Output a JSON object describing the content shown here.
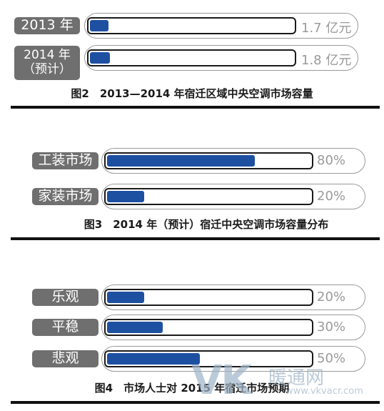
{
  "colors": {
    "fill": "#1e50a2",
    "label_bg": "#6f6f6f",
    "value_text": "#9a9a9a"
  },
  "charts": [
    {
      "caption": "图2　2013—2014 年宿迁区域中央空调市场容量",
      "rows": [
        {
          "label": "2013 年",
          "value_text": "1.7 亿元"
        },
        {
          "label": "2014 年\n（预计）",
          "value_text": "1.8 亿元"
        }
      ]
    },
    {
      "caption": "图3　2014 年（预计）宿迁中央空调市场容量分布",
      "rows": [
        {
          "label": "工装市场",
          "value_text": "80%"
        },
        {
          "label": "家装市场",
          "value_text": "20%"
        }
      ]
    },
    {
      "caption": "图4　市场人士对 2015 年宿迁市场预期",
      "rows": [
        {
          "label": "乐观",
          "value_text": "20%"
        },
        {
          "label": "平稳",
          "value_text": "30%"
        },
        {
          "label": "悲观",
          "value_text": "50%"
        }
      ]
    }
  ],
  "chart_data": [
    {
      "type": "bar",
      "title": "图2　2013—2014 年宿迁区域中央空调市场容量",
      "categories": [
        "2013 年",
        "2014 年（预计）"
      ],
      "values": [
        1.7,
        1.8
      ],
      "unit": "亿元"
    },
    {
      "type": "bar",
      "title": "图3　2014 年（预计）宿迁中央空调市场容量分布",
      "categories": [
        "工装市场",
        "家装市场"
      ],
      "values": [
        80,
        20
      ],
      "unit": "%"
    },
    {
      "type": "bar",
      "title": "图4　市场人士对 2015 年宿迁市场预期",
      "categories": [
        "乐观",
        "平稳",
        "悲观"
      ],
      "values": [
        20,
        30,
        50
      ],
      "unit": "%"
    }
  ],
  "watermark": {
    "logo": "VK",
    "text": "暖通网",
    "url": "www.vkvacr.com"
  }
}
